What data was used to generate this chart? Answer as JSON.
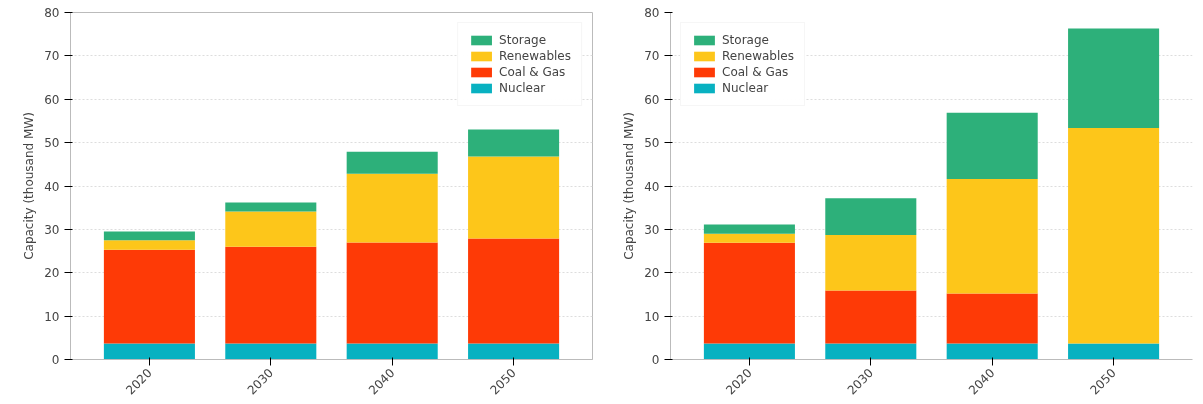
{
  "chart_data": [
    {
      "type": "bar",
      "stacked": true,
      "ylabel": "Capacity (thousand MW)",
      "categories": [
        "2020",
        "2030",
        "2040",
        "2050"
      ],
      "ylim": [
        0,
        80
      ],
      "yticks": [
        0,
        10,
        20,
        30,
        40,
        50,
        60,
        70,
        80
      ],
      "grid": "y",
      "legend": "top right",
      "series": [
        {
          "name": "Nuclear",
          "color": "#08b1c1",
          "values": [
            3.7,
            3.7,
            3.7,
            3.7
          ]
        },
        {
          "name": "Coal & Gas",
          "color": "#fe3a06",
          "values": [
            21.6,
            22.3,
            23.3,
            24.2
          ]
        },
        {
          "name": "Renewables",
          "color": "#fdc61a",
          "values": [
            2.2,
            8.1,
            15.8,
            18.9
          ]
        },
        {
          "name": "Storage",
          "color": "#2db07a",
          "values": [
            2.0,
            2.1,
            5.1,
            6.2
          ]
        }
      ]
    },
    {
      "type": "bar",
      "stacked": true,
      "ylabel": "Capacity (thousand MW)",
      "categories": [
        "2020",
        "2030",
        "2040",
        "2050"
      ],
      "ylim": [
        0,
        80
      ],
      "yticks": [
        0,
        10,
        20,
        30,
        40,
        50,
        60,
        70,
        80
      ],
      "grid": "y",
      "legend": "top left",
      "series": [
        {
          "name": "Nuclear",
          "color": "#08b1c1",
          "values": [
            3.7,
            3.7,
            3.7,
            3.7
          ]
        },
        {
          "name": "Coal & Gas",
          "color": "#fe3a06",
          "values": [
            23.2,
            12.2,
            11.5,
            0
          ]
        },
        {
          "name": "Renewables",
          "color": "#fdc61a",
          "values": [
            2.1,
            12.8,
            26.4,
            49.7
          ]
        },
        {
          "name": "Storage",
          "color": "#2db07a",
          "values": [
            2.1,
            8.5,
            15.3,
            22.9
          ]
        }
      ]
    }
  ]
}
